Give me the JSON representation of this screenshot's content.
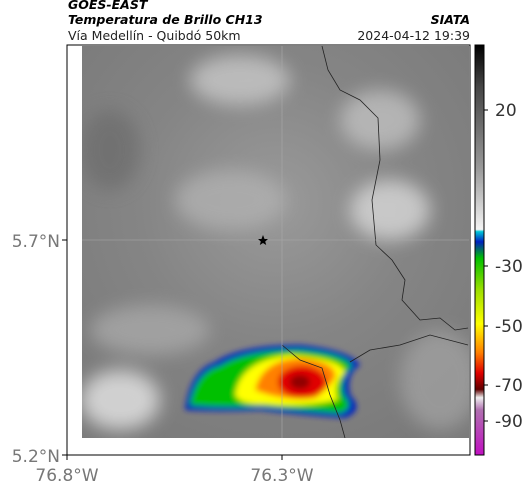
{
  "header": {
    "satellite": "GOES-EAST",
    "product": "Temperatura de Brillo CH13",
    "agency": "SIATA",
    "region": "Vía Medellín - Quibdó 50km",
    "timestamp": "2024-04-12 19:39"
  },
  "map": {
    "lat_labels": [
      "5.7°N",
      "5.2°N"
    ],
    "lon_labels": [
      "76.8°W",
      "76.3°W"
    ]
  },
  "colorbar": {
    "labels": [
      "20",
      "-30",
      "-50",
      "-70",
      "-90"
    ]
  }
}
